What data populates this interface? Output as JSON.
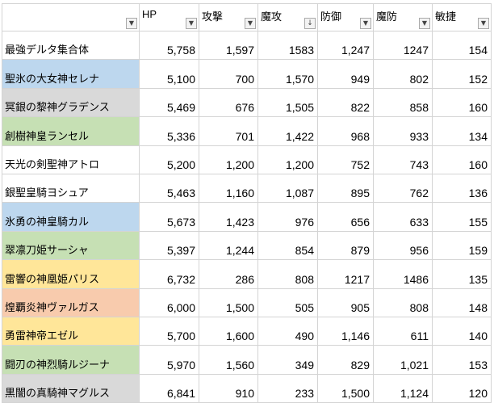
{
  "sheet": {
    "columns": [
      {
        "label": "",
        "icon": "filter-dropdown-icon"
      },
      {
        "label": "HP",
        "icon": "filter-dropdown-icon"
      },
      {
        "label": "攻撃",
        "icon": "filter-dropdown-icon"
      },
      {
        "label": "魔攻",
        "icon": "sort-desc-filter-icon"
      },
      {
        "label": "防御",
        "icon": "filter-dropdown-icon"
      },
      {
        "label": "魔防",
        "icon": "filter-dropdown-icon"
      },
      {
        "label": "敏捷",
        "icon": "filter-dropdown-icon"
      }
    ],
    "rows": [
      {
        "name": "最強デルタ集合体",
        "color": "#ffffff",
        "values": [
          "5,758",
          "1,597",
          "1583",
          "1,247",
          "1247",
          "154"
        ]
      },
      {
        "name": "聖氷の大女神セレナ",
        "color": "#bdd7ee",
        "values": [
          "5,100",
          "700",
          "1,570",
          "949",
          "802",
          "152"
        ]
      },
      {
        "name": "冥銀の黎神グラデンス",
        "color": "#d9d9d9",
        "values": [
          "5,469",
          "676",
          "1,505",
          "822",
          "858",
          "160"
        ]
      },
      {
        "name": "創樹神皇ランセル",
        "color": "#c6e0b4",
        "values": [
          "5,336",
          "701",
          "1,422",
          "968",
          "933",
          "134"
        ]
      },
      {
        "name": "天光の剣聖神アトロ",
        "color": "#ffffff",
        "values": [
          "5,200",
          "1,200",
          "1,200",
          "752",
          "743",
          "160"
        ]
      },
      {
        "name": "銀聖皇騎ヨシュア",
        "color": "#ffffff",
        "values": [
          "5,463",
          "1,160",
          "1,087",
          "895",
          "762",
          "136"
        ]
      },
      {
        "name": "氷勇の神皇騎カル",
        "color": "#bdd7ee",
        "values": [
          "5,673",
          "1,423",
          "976",
          "656",
          "633",
          "155"
        ]
      },
      {
        "name": "翠凛刀姫サーシャ",
        "color": "#c6e0b4",
        "values": [
          "5,397",
          "1,244",
          "854",
          "879",
          "956",
          "159"
        ]
      },
      {
        "name": "雷響の神凰姫パリス",
        "color": "#ffe699",
        "values": [
          "6,732",
          "286",
          "808",
          "1217",
          "1486",
          "135"
        ]
      },
      {
        "name": "煌覇炎神ヴァルガス",
        "color": "#f8cbad",
        "values": [
          "6,000",
          "1,500",
          "505",
          "905",
          "808",
          "148"
        ]
      },
      {
        "name": "勇雷神帝エゼル",
        "color": "#ffe699",
        "values": [
          "5,700",
          "1,600",
          "490",
          "1,146",
          "611",
          "140"
        ]
      },
      {
        "name": "闘刃の神烈騎ルジーナ",
        "color": "#c6e0b4",
        "values": [
          "5,970",
          "1,560",
          "349",
          "829",
          "1,021",
          "153"
        ]
      },
      {
        "name": "黒闇の真騎神マグルス",
        "color": "#d9d9d9",
        "values": [
          "6,841",
          "910",
          "233",
          "1,500",
          "1,124",
          "120"
        ]
      }
    ]
  }
}
